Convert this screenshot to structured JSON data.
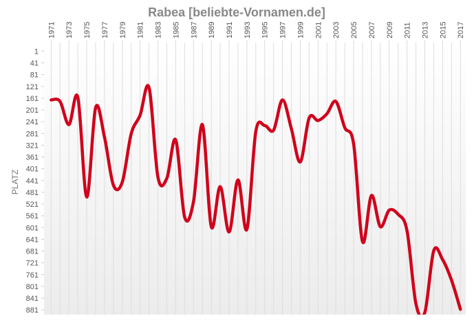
{
  "chart_data": {
    "type": "line",
    "title": "Rabea [beliebte-Vornamen.de]",
    "y_label": "PLATZ",
    "x": [
      1971,
      1972,
      1973,
      1974,
      1975,
      1976,
      1977,
      1978,
      1979,
      1980,
      1981,
      1982,
      1983,
      1984,
      1985,
      1986,
      1987,
      1988,
      1989,
      1990,
      1991,
      1992,
      1993,
      1994,
      1995,
      1996,
      1997,
      1998,
      1999,
      2000,
      2001,
      2002,
      2003,
      2004,
      2005,
      2006,
      2007,
      2008,
      2009,
      2010,
      2011,
      2012,
      2013,
      2014,
      2015,
      2016,
      2017
    ],
    "series": [
      {
        "name": "Rabea",
        "color": "#d0021b",
        "values": [
          167,
          172,
          251,
          158,
          497,
          193,
          294,
          457,
          446,
          282,
          219,
          125,
          429,
          434,
          303,
          565,
          513,
          251,
          598,
          462,
          616,
          439,
          607,
          275,
          254,
          270,
          167,
          265,
          378,
          228,
          237,
          214,
          172,
          261,
          317,
          649,
          492,
          598,
          542,
          556,
          612,
          860,
          890,
          680,
          710,
          780,
          879
        ]
      }
    ],
    "xlim": [
      1970.2,
      2017.6
    ],
    "xticks": [
      1971,
      1973,
      1975,
      1977,
      1979,
      1981,
      1983,
      1985,
      1987,
      1989,
      1991,
      1993,
      1995,
      1997,
      1999,
      2001,
      2003,
      2005,
      2007,
      2009,
      2011,
      2013,
      2015,
      2017
    ],
    "ylim": [
      -28,
      897
    ],
    "y_inverted": true,
    "yticks": [
      1,
      41,
      81,
      121,
      161,
      201,
      241,
      281,
      321,
      361,
      401,
      441,
      481,
      521,
      561,
      601,
      641,
      681,
      721,
      761,
      801,
      841,
      881
    ],
    "grid": true
  }
}
